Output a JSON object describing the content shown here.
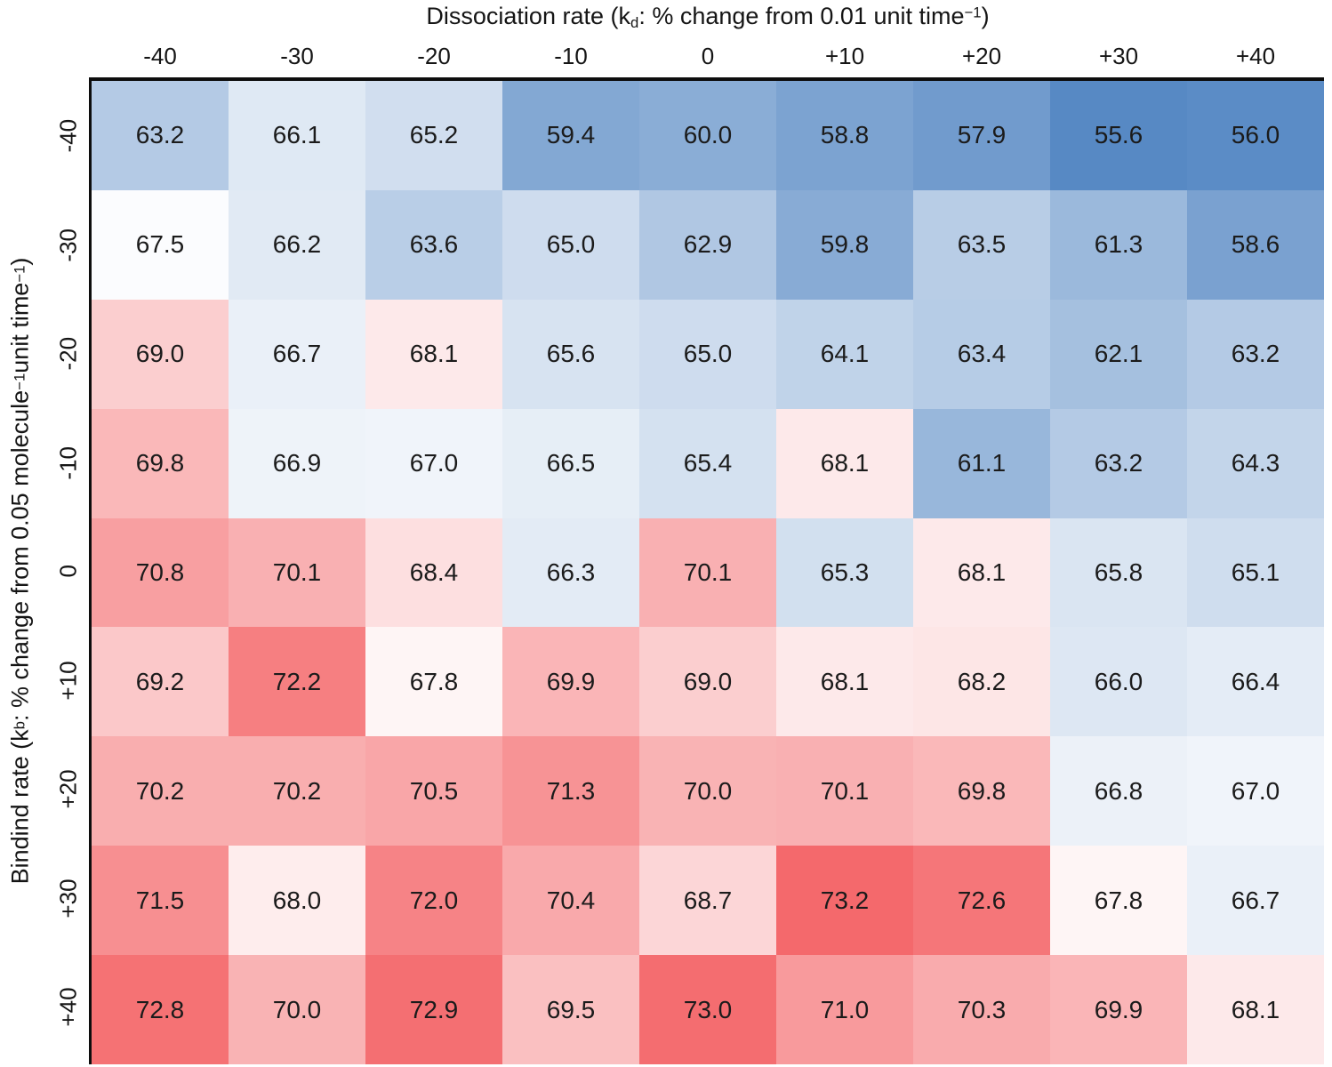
{
  "chart_data": {
    "type": "heatmap",
    "x_axis": {
      "title": {
        "pre": "Dissociation rate (k",
        "sub_1": "d",
        "mid": ": % change from 0.01 unit time",
        "sup_1": "−1",
        "end": ")"
      },
      "ticks": [
        "-40",
        "-30",
        "-20",
        "-10",
        "0",
        "+10",
        "+20",
        "+30",
        "+40"
      ]
    },
    "y_axis": {
      "title": {
        "pre": "Bindind rate (k",
        "sub_1": "b",
        "mid_1": ": % change from 0.05 molecule",
        "sup_1": "−1",
        "mid_2": "unit time",
        "sup_2": "−1",
        "end": ")"
      },
      "ticks": [
        "-40",
        "-30",
        "-20",
        "-10",
        "0",
        "+10",
        "+20",
        "+30",
        "+40"
      ]
    },
    "rows": [
      {
        "label": "-40",
        "values": [
          63.2,
          66.1,
          65.2,
          59.4,
          60.0,
          58.8,
          57.9,
          55.6,
          56.0
        ]
      },
      {
        "label": "-30",
        "values": [
          67.5,
          66.2,
          63.6,
          65.0,
          62.9,
          59.8,
          63.5,
          61.3,
          58.6
        ]
      },
      {
        "label": "-20",
        "values": [
          69.0,
          66.7,
          68.1,
          65.6,
          65.0,
          64.1,
          63.4,
          62.1,
          63.2
        ]
      },
      {
        "label": "-10",
        "values": [
          69.8,
          66.9,
          67.0,
          66.5,
          65.4,
          68.1,
          61.1,
          63.2,
          64.3
        ]
      },
      {
        "label": "0",
        "values": [
          70.8,
          70.1,
          68.4,
          66.3,
          70.1,
          65.3,
          68.1,
          65.8,
          65.1
        ]
      },
      {
        "label": "+10",
        "values": [
          69.2,
          72.2,
          67.8,
          69.9,
          69.0,
          68.1,
          68.2,
          66.0,
          66.4
        ]
      },
      {
        "label": "+20",
        "values": [
          70.2,
          70.2,
          70.5,
          71.3,
          70.0,
          70.1,
          69.8,
          66.8,
          67.0
        ]
      },
      {
        "label": "+30",
        "values": [
          71.5,
          68.0,
          72.0,
          70.4,
          68.7,
          73.2,
          72.6,
          67.8,
          66.7
        ]
      },
      {
        "label": "+40",
        "values": [
          72.8,
          70.0,
          72.9,
          69.5,
          73.0,
          71.0,
          70.3,
          69.9,
          68.1
        ]
      }
    ],
    "value_format_decimals": 1,
    "colorscale": {
      "min": 55.6,
      "mid": 67.6,
      "max": 73.2,
      "gamma": 0.8,
      "blue_max": "#5789c4",
      "white": "#ffffff",
      "red_max": "#f4696c"
    },
    "layout": {
      "legend": "none",
      "grid_lines": false,
      "cell_text_color": "#1b1b1b",
      "border_color": "#0d0d0d"
    }
  }
}
